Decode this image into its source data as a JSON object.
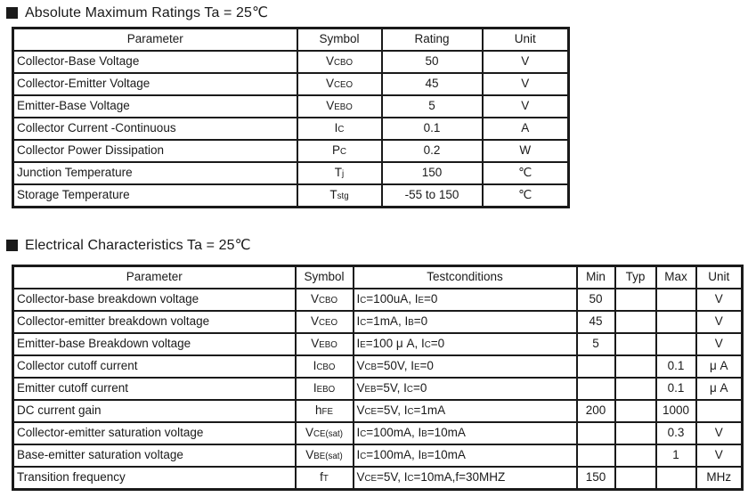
{
  "sections": [
    {
      "title": "Absolute Maximum Ratings Ta = 25℃",
      "columns": [
        "Parameter",
        "Symbol",
        "Rating",
        "Unit"
      ],
      "keys": [
        "parameter",
        "symbol",
        "rating",
        "unit"
      ],
      "rows": [
        [
          "Collector-Base Voltage",
          [
            {
              "t": "V"
            },
            {
              "s": "CBO"
            }
          ],
          "50",
          "V"
        ],
        [
          "Collector-Emitter Voltage",
          [
            {
              "t": "V"
            },
            {
              "s": "CEO"
            }
          ],
          "45",
          "V"
        ],
        [
          "Emitter-Base Voltage",
          [
            {
              "t": "V"
            },
            {
              "s": "EBO"
            }
          ],
          "5",
          "V"
        ],
        [
          "Collector Current -Continuous",
          [
            {
              "t": "I"
            },
            {
              "s": "C"
            }
          ],
          "0.1",
          "A"
        ],
        [
          "Collector Power Dissipation",
          [
            {
              "t": "P"
            },
            {
              "s": "C"
            }
          ],
          "0.2",
          "W"
        ],
        [
          "Junction Temperature",
          [
            {
              "t": "T"
            },
            {
              "s": "j"
            }
          ],
          "150",
          "℃"
        ],
        [
          "Storage Temperature",
          [
            {
              "t": "T"
            },
            {
              "s": "stg"
            }
          ],
          "-55 to 150",
          "℃"
        ]
      ]
    },
    {
      "title": "Electrical Characteristics Ta = 25℃",
      "columns": [
        "Parameter",
        "Symbol",
        "Testconditions",
        "Min",
        "Typ",
        "Max",
        "Unit"
      ],
      "keys": [
        "parameter",
        "symbol",
        "testconditions",
        "min",
        "typ",
        "max",
        "unit"
      ],
      "rows": [
        [
          "Collector-base breakdown voltage",
          [
            {
              "t": "V"
            },
            {
              "s": "CBO"
            }
          ],
          [
            {
              "t": "I"
            },
            {
              "s": "C"
            },
            {
              "t": "=100uA, I"
            },
            {
              "s": "E"
            },
            {
              "t": "=0"
            }
          ],
          "50",
          "",
          "",
          "V"
        ],
        [
          "Collector-emitter breakdown voltage",
          [
            {
              "t": "V"
            },
            {
              "s": "CEO"
            }
          ],
          [
            {
              "t": "I"
            },
            {
              "s": "C"
            },
            {
              "t": "=1mA, I"
            },
            {
              "s": "B"
            },
            {
              "t": "=0"
            }
          ],
          "45",
          "",
          "",
          "V"
        ],
        [
          "Emitter-base Breakdown voltage",
          [
            {
              "t": "V"
            },
            {
              "s": "EBO"
            }
          ],
          [
            {
              "t": "I"
            },
            {
              "s": "E"
            },
            {
              "t": "=100 μ A, I"
            },
            {
              "s": "C"
            },
            {
              "t": "=0"
            }
          ],
          "5",
          "",
          "",
          "V"
        ],
        [
          "Collector cutoff current",
          [
            {
              "t": "I"
            },
            {
              "s": "CBO"
            }
          ],
          [
            {
              "t": "V"
            },
            {
              "s": "CB"
            },
            {
              "t": "=50V, I"
            },
            {
              "s": "E"
            },
            {
              "t": "=0"
            }
          ],
          "",
          "",
          "0.1",
          "μ A"
        ],
        [
          "Emitter cutoff current",
          [
            {
              "t": "I"
            },
            {
              "s": "EBO"
            }
          ],
          [
            {
              "t": "V"
            },
            {
              "s": "EB"
            },
            {
              "t": "=5V, I"
            },
            {
              "s": "C"
            },
            {
              "t": "=0"
            }
          ],
          "",
          "",
          "0.1",
          "μ A"
        ],
        [
          "DC current gain",
          [
            {
              "t": "h"
            },
            {
              "s": "FE"
            }
          ],
          [
            {
              "t": "V"
            },
            {
              "s": "CE"
            },
            {
              "t": "=5V, I"
            },
            {
              "s": "C"
            },
            {
              "t": "=1mA"
            }
          ],
          "200",
          "",
          "1000",
          ""
        ],
        [
          "Collector-emitter saturation voltage",
          [
            {
              "t": "V"
            },
            {
              "s": "CE(sat)"
            }
          ],
          [
            {
              "t": "I"
            },
            {
              "s": "C"
            },
            {
              "t": "=100mA, I"
            },
            {
              "s": "B"
            },
            {
              "t": "=10mA"
            }
          ],
          "",
          "",
          "0.3",
          "V"
        ],
        [
          "Base-emitter saturation voltage",
          [
            {
              "t": "V"
            },
            {
              "s": "BE(sat)"
            }
          ],
          [
            {
              "t": "I"
            },
            {
              "s": "C"
            },
            {
              "t": "=100mA, I"
            },
            {
              "s": "B"
            },
            {
              "t": "=10mA"
            }
          ],
          "",
          "",
          "1",
          "V"
        ],
        [
          "Transition frequency",
          [
            {
              "t": "f"
            },
            {
              "s": "T"
            }
          ],
          [
            {
              "t": "V"
            },
            {
              "s": "CE"
            },
            {
              "t": "=5V, I"
            },
            {
              "s": "C"
            },
            {
              "t": "=10mA,f=30MHZ"
            }
          ],
          "150",
          "",
          "",
          "MHz"
        ]
      ]
    }
  ]
}
